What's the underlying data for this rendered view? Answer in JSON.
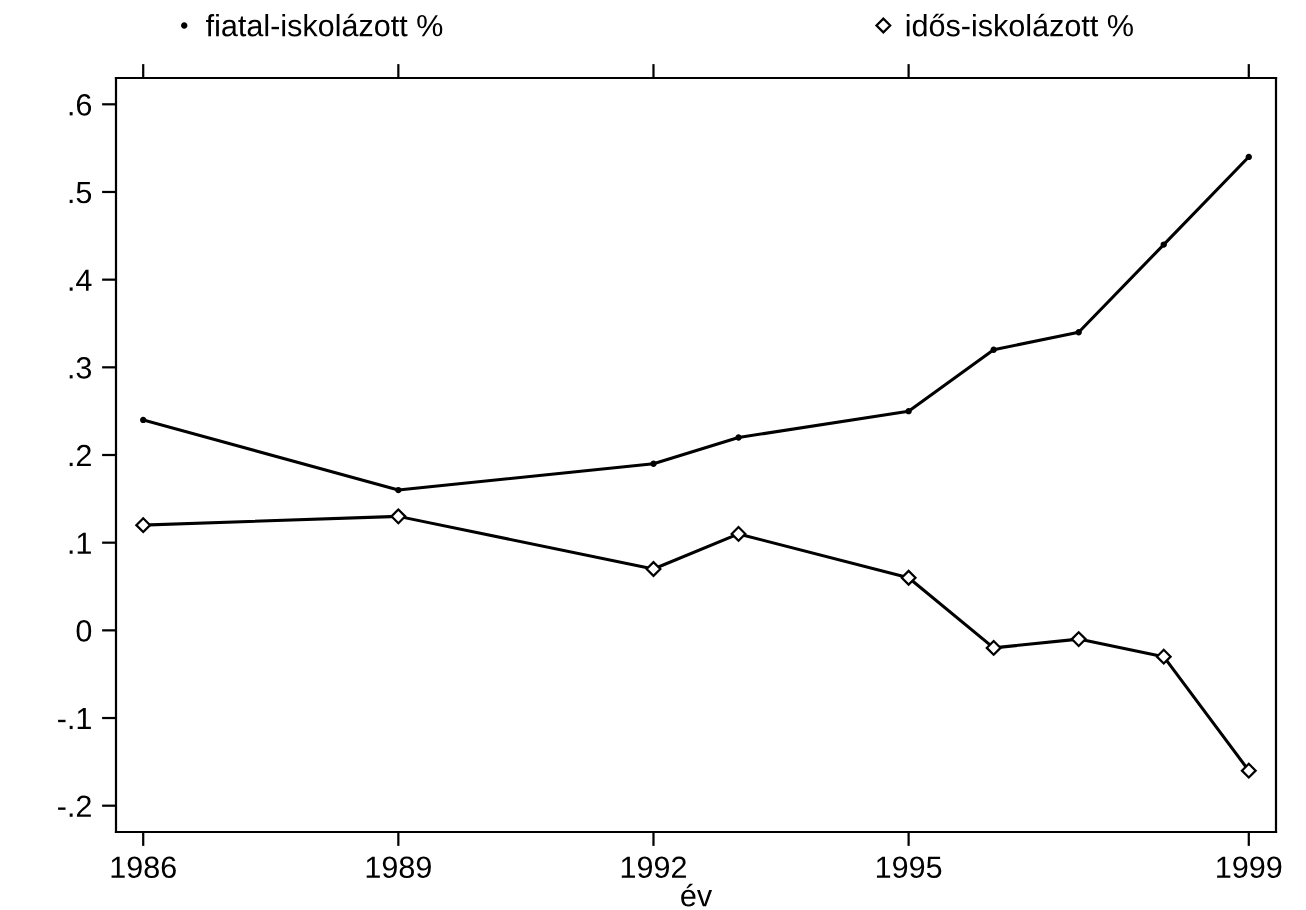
{
  "chart_data": {
    "type": "line",
    "xlabel": "év",
    "x": [
      1986,
      1989,
      1992,
      1993,
      1995,
      1996,
      1997,
      1998,
      1999
    ],
    "series": [
      {
        "name": "fiatal-iskolázott %",
        "color": "#000000",
        "marker": "circle",
        "values": [
          0.24,
          0.16,
          0.19,
          0.22,
          0.25,
          0.32,
          0.34,
          0.44,
          0.54
        ]
      },
      {
        "name": "idős-iskolázott %",
        "color": "#000000",
        "marker": "diamond",
        "values": [
          0.12,
          0.13,
          0.07,
          0.11,
          0.06,
          -0.02,
          -0.01,
          -0.03,
          -0.16
        ]
      }
    ],
    "xlim": [
      1985.68,
      1999.32
    ],
    "ylim": [
      -0.23,
      0.63
    ],
    "xticks": [
      1986,
      1989,
      1992,
      1995,
      1999
    ],
    "yticks": [
      {
        "value": -0.2,
        "label": "-.2"
      },
      {
        "value": -0.1,
        "label": "-.1"
      },
      0,
      {
        "value": 0.1,
        "label": ".1"
      },
      {
        "value": 0.2,
        "label": ".2"
      },
      {
        "value": 0.3,
        "label": ".3"
      },
      {
        "value": 0.4,
        "label": ".4"
      },
      {
        "value": 0.5,
        "label": ".5"
      },
      {
        "value": 0.6,
        "label": ".6"
      }
    ],
    "legend": "top",
    "grid": false,
    "line_style": "solid"
  }
}
